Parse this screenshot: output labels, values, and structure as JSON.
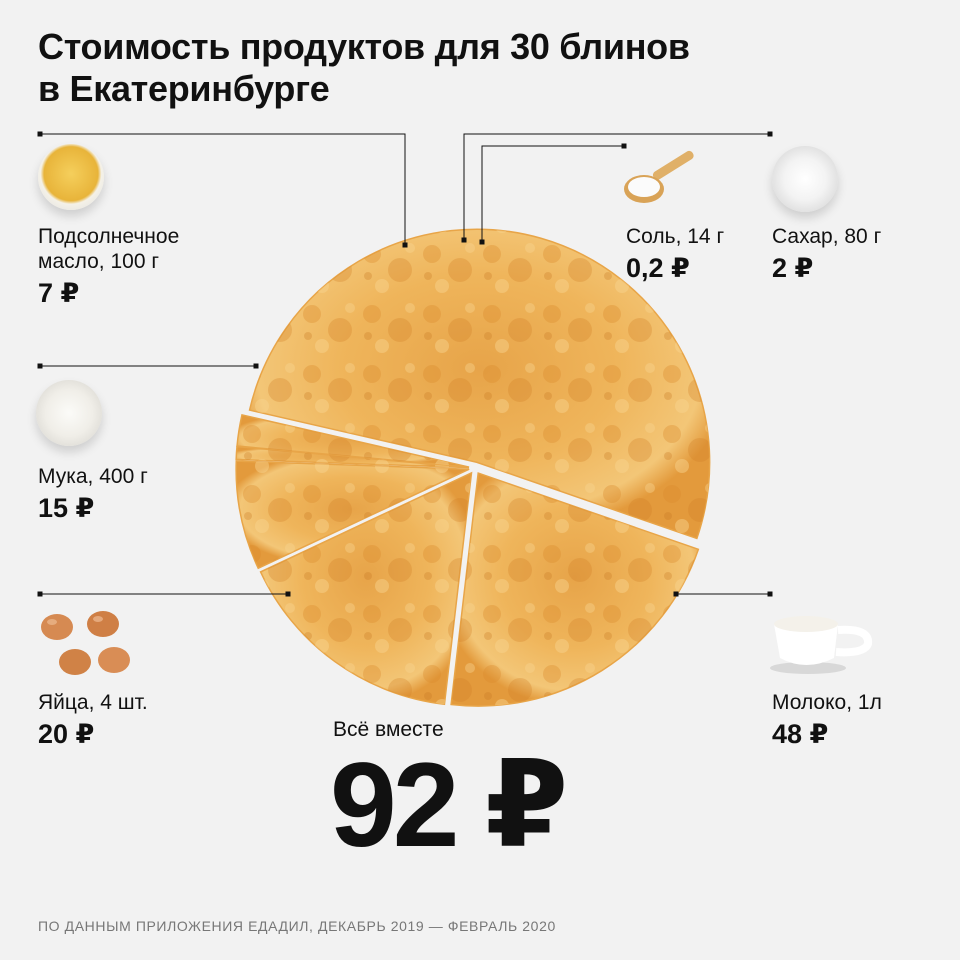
{
  "title": {
    "line1": "Стоимость продуктов для 30 блинов",
    "line2": "в Екатеринбурге"
  },
  "items": [
    {
      "name_line1": "Подсолнечное",
      "name_line2": "масло, 100 г",
      "price": "7 ₽",
      "icon": "sunflower-oil-icon"
    },
    {
      "name_line1": "Мука, 400 г",
      "name_line2": "",
      "price": "15 ₽",
      "icon": "flour-bowl-icon"
    },
    {
      "name_line1": "Яйца, 4 шт.",
      "name_line2": "",
      "price": "20 ₽",
      "icon": "eggs-icon"
    },
    {
      "name_line1": "Соль, 14 г",
      "name_line2": "",
      "price": "0,2 ₽",
      "icon": "salt-spoon-icon"
    },
    {
      "name_line1": "Сахар, 80 г",
      "name_line2": "",
      "price": "2 ₽",
      "icon": "sugar-cubes-icon"
    },
    {
      "name_line1": "Молоко, 1л",
      "name_line2": "",
      "price": "48 ₽",
      "icon": "milk-jug-icon"
    }
  ],
  "total": {
    "label": "Всё вместе",
    "value": "92 ₽"
  },
  "source": "ПО ДАННЫМ ПРИЛОЖЕНИЯ ЕДАДИЛ, ДЕКАБРЬ 2019 — ФЕВРАЛЬ 2020",
  "chart_data": {
    "type": "pie",
    "categories": [
      "Подсолнечное масло, 100 г",
      "Мука, 400 г",
      "Яйца, 4 шт.",
      "Соль, 14 г",
      "Сахар, 80 г",
      "Молоко, 1л"
    ],
    "values": [
      7,
      15,
      20,
      0.2,
      2,
      48
    ],
    "total": 92,
    "unit": "₽"
  },
  "colors": {
    "background": "#f2f2f2",
    "pancake_light": "#f6c76f",
    "pancake_dark": "#d9892a",
    "pancake_edge": "#e8a548",
    "leader_line": "#111111"
  }
}
